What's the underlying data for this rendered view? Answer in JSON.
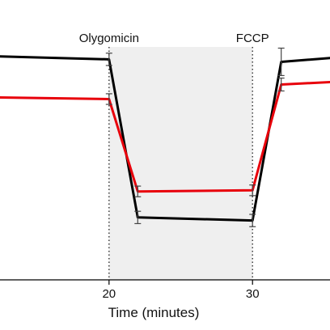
{
  "chart_data": {
    "type": "line",
    "title": "",
    "xlabel": "Time (minutes)",
    "ylabel": "",
    "x_ticks": [
      20,
      30
    ],
    "xlim": [
      12.4,
      35.4
    ],
    "ylim": [
      0,
      100
    ],
    "grid": false,
    "shaded_region": {
      "x": [
        20,
        30
      ],
      "color": "#efefef"
    },
    "annotations": [
      {
        "text": "Olygomicin",
        "x": 20
      },
      {
        "text": "FCCP",
        "x": 30
      }
    ],
    "series": [
      {
        "color": "#000000",
        "x": [
          12,
          20,
          22,
          30,
          32,
          36
        ],
        "y": [
          79.9,
          78.8,
          22.3,
          21.2,
          77.9,
          79.5
        ],
        "err": [
          null,
          2.2,
          2.2,
          2.2,
          4.9,
          null
        ]
      },
      {
        "color": "#e8000b",
        "x": [
          12,
          20,
          22,
          30,
          32,
          36
        ],
        "y": [
          65.2,
          64.6,
          31.6,
          32.0,
          69.8,
          70.8
        ],
        "err": [
          null,
          1.9,
          1.9,
          1.9,
          2.3,
          null
        ]
      }
    ]
  }
}
